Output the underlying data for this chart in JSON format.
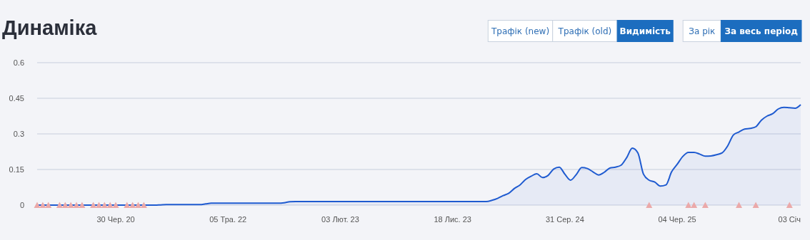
{
  "chart_data": {
    "type": "area",
    "title": "Динаміка",
    "annotations": [
      "Трафік (new)",
      "Трафік (old)",
      "Видимість",
      "За рік",
      "За весь період"
    ],
    "categories": [
      null,
      null,
      null,
      null,
      null,
      null,
      null,
      null,
      null,
      null,
      null,
      null,
      null,
      null,
      "30 Чер. 20",
      null,
      null,
      null,
      null,
      null,
      null,
      null,
      null,
      null,
      null,
      null,
      null,
      null,
      null,
      null,
      null,
      null,
      null,
      null,
      "05 Тра. 22",
      null,
      null,
      null,
      null,
      null,
      null,
      null,
      null,
      null,
      null,
      null,
      null,
      null,
      null,
      null,
      null,
      null,
      null,
      null,
      "03 Лют. 23",
      null,
      null,
      null,
      null,
      null,
      null,
      null,
      null,
      null,
      null,
      null,
      null,
      null,
      null,
      null,
      null,
      null,
      null,
      null,
      "18 Лис. 23",
      null,
      null,
      null,
      null,
      null,
      null,
      null,
      null,
      null,
      null,
      null,
      null,
      null,
      null,
      null,
      null,
      null,
      null,
      null,
      "31 Сер. 24",
      null,
      null,
      null,
      null,
      null,
      null,
      null,
      null,
      null,
      null,
      null,
      null,
      null,
      null,
      null,
      null,
      null,
      null,
      null,
      "04 Чер. 25",
      null,
      null,
      null,
      null,
      null,
      null,
      null,
      null,
      null,
      null,
      null,
      null,
      null,
      null,
      null,
      null,
      null,
      null,
      null,
      "03 Січ",
      null,
      null
    ],
    "series": [
      {
        "color": "#1f5bd0",
        "values": [
          0,
          0,
          0,
          0,
          0,
          0,
          0,
          0,
          0,
          0,
          0,
          0,
          0,
          0,
          0,
          0,
          0,
          0,
          0,
          0,
          0,
          0,
          0.001,
          0.002,
          0.002,
          0.002,
          0.002,
          0.002,
          0.002,
          0.002,
          0.005,
          0.008,
          0.008,
          0.008,
          0.008,
          0.008,
          0.008,
          0.008,
          0.008,
          0.008,
          0.008,
          0.008,
          0.008,
          0.008,
          0.01,
          0.014,
          0.015,
          0.015,
          0.015,
          0.015,
          0.015,
          0.015,
          0.015,
          0.015,
          0.015,
          0.015,
          0.015,
          0.015,
          0.015,
          0.015,
          0.015,
          0.015,
          0.015,
          0.015,
          0.015,
          0.015,
          0.015,
          0.015,
          0.015,
          0.015,
          0.015,
          0.015,
          0.015,
          0.015,
          0.015,
          0.015,
          0.015,
          0.015,
          0.015,
          0.015,
          0.015,
          0.02,
          0.028,
          0.04,
          0.05,
          0.07,
          0.085,
          0.108,
          0.122,
          0.132,
          0.116,
          0.125,
          0.152,
          0.16,
          0.13,
          0.105,
          0.128,
          0.158,
          0.154,
          0.14,
          0.127,
          0.138,
          0.156,
          0.16,
          0.168,
          0.2,
          0.24,
          0.22,
          0.13,
          0.105,
          0.097,
          0.08,
          0.085,
          0.14,
          0.172,
          0.205,
          0.222,
          0.222,
          0.215,
          0.206,
          0.207,
          0.212,
          0.22,
          0.25,
          0.295,
          0.308,
          0.32,
          0.323,
          0.33,
          0.358,
          0.375,
          0.385,
          0.405,
          0.412,
          0.41,
          0.408,
          0.423
        ]
      },
      {
        "type": "scatter",
        "marker": "triangle",
        "color": "#eba9a9",
        "values": [
          0,
          0,
          0,
          null,
          0,
          0,
          0,
          0,
          0,
          null,
          0,
          0,
          0,
          0,
          0,
          null,
          0,
          0,
          0,
          0,
          null,
          null,
          null,
          null,
          null,
          null,
          null,
          null,
          null,
          null,
          null,
          null,
          null,
          null,
          null,
          null,
          null,
          null,
          null,
          null,
          null,
          null,
          null,
          null,
          null,
          null,
          null,
          null,
          null,
          null,
          null,
          null,
          null,
          null,
          null,
          null,
          null,
          null,
          null,
          null,
          null,
          null,
          null,
          null,
          null,
          null,
          null,
          null,
          null,
          null,
          null,
          null,
          null,
          null,
          null,
          null,
          null,
          null,
          null,
          null,
          null,
          null,
          null,
          null,
          null,
          null,
          null,
          null,
          null,
          null,
          null,
          null,
          null,
          null,
          null,
          null,
          null,
          null,
          null,
          null,
          null,
          null,
          null,
          null,
          null,
          null,
          null,
          null,
          null,
          0,
          null,
          null,
          null,
          null,
          null,
          null,
          0,
          0,
          null,
          0,
          null,
          null,
          null,
          null,
          null,
          0,
          null,
          null,
          0,
          null,
          null,
          null,
          null,
          null,
          0,
          null,
          null
        ]
      }
    ],
    "ylim": [
      0,
      0.6
    ],
    "yticks": [
      0,
      0.15,
      0.3,
      0.45,
      0.6
    ],
    "grid": "y"
  }
}
